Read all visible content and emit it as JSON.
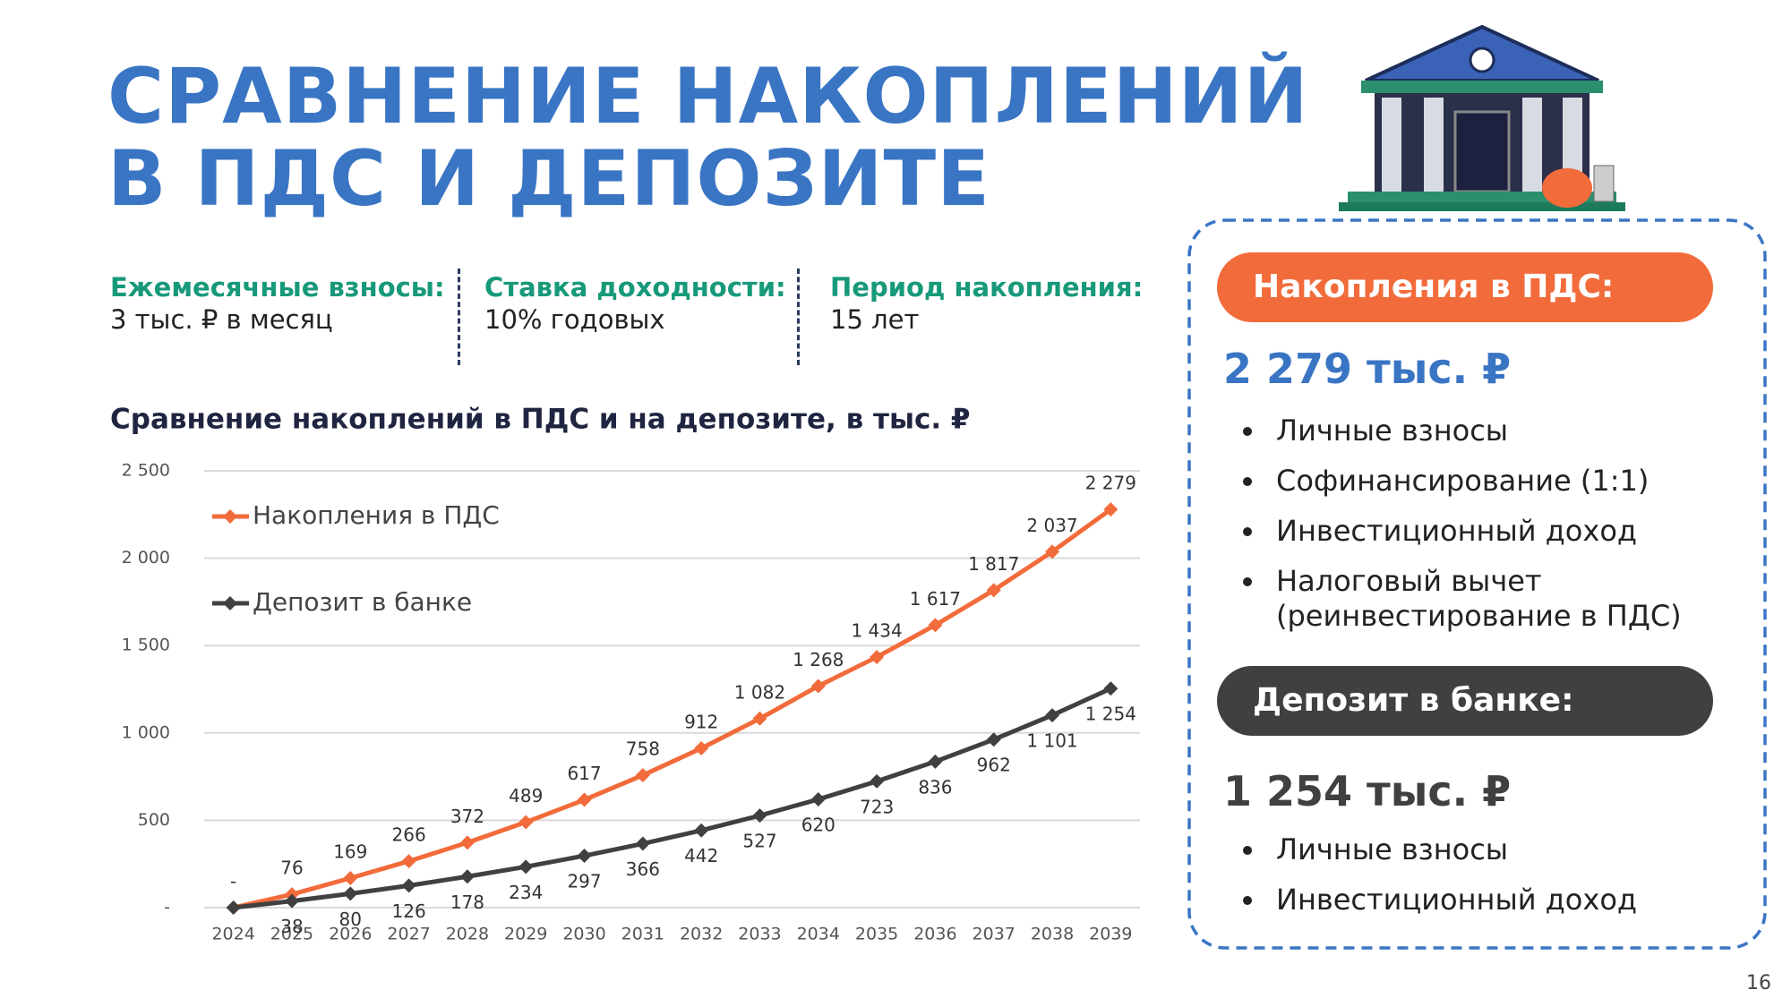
{
  "header": {
    "title_lines": [
      "СРАВНЕНИЕ НАКОПЛЕНИЙ",
      "В ПДС И ДЕПОЗИТЕ"
    ]
  },
  "params": [
    {
      "label": "Ежемесячные взносы:",
      "value": "3 тыс. ₽ в месяц"
    },
    {
      "label": "Ставка доходности:",
      "value": "10% годовых"
    },
    {
      "label": "Период накопления:",
      "value": "15 лет"
    }
  ],
  "chart_data": {
    "type": "line",
    "title": "Сравнение накоплений в ПДС и на депозите, в тыс. ₽",
    "categories": [
      "2024",
      "2025",
      "2026",
      "2027",
      "2028",
      "2029",
      "2030",
      "2031",
      "2032",
      "2033",
      "2034",
      "2035",
      "2036",
      "2037",
      "2038",
      "2039"
    ],
    "series": [
      {
        "name": "Накопления в ПДС",
        "color": "#f26b3a",
        "values": [
          0,
          76,
          169,
          266,
          372,
          489,
          617,
          758,
          912,
          1082,
          1268,
          1434,
          1617,
          1817,
          2037,
          2279
        ],
        "value_labels": [
          "-",
          "76",
          "169",
          "266",
          "372",
          "489",
          "617",
          "758",
          "912",
          "1 082",
          "1 268",
          "1 434",
          "1 617",
          "1 817",
          "2 037",
          "2 279"
        ]
      },
      {
        "name": "Депозит в банке",
        "color": "#404040",
        "values": [
          0,
          38,
          80,
          126,
          178,
          234,
          297,
          366,
          442,
          527,
          620,
          723,
          836,
          962,
          1101,
          1254
        ],
        "value_labels": [
          null,
          "38",
          "80",
          "126",
          "178",
          "234",
          "297",
          "366",
          "442",
          "527",
          "620",
          "723",
          "836",
          "962",
          "1 101",
          "1 254"
        ]
      }
    ],
    "ylim": [
      0,
      2500
    ],
    "yticks": [
      {
        "value": 0,
        "label": "-"
      },
      500,
      {
        "value": 1000,
        "label": "1 000"
      },
      {
        "value": 1500,
        "label": "1 500"
      },
      {
        "value": 2000,
        "label": "2 000"
      },
      {
        "value": 2500,
        "label": "2 500"
      }
    ],
    "grid": true,
    "legend": "upper-left"
  },
  "panel": {
    "pds": {
      "header": "Накопления в ПДС:",
      "amount": "2 279 тыс. ₽",
      "bullets": [
        "Личные взносы",
        "Софинансирование (1:1)",
        "Инвестиционный доход",
        "Налоговый вычет (реинвестирование в ПДС)"
      ]
    },
    "deposit": {
      "header": "Депозит в банке:",
      "amount": "1 254 тыс. ₽",
      "bullets": [
        "Личные взносы",
        "Инвестиционный доход"
      ]
    }
  },
  "page_number": "16"
}
